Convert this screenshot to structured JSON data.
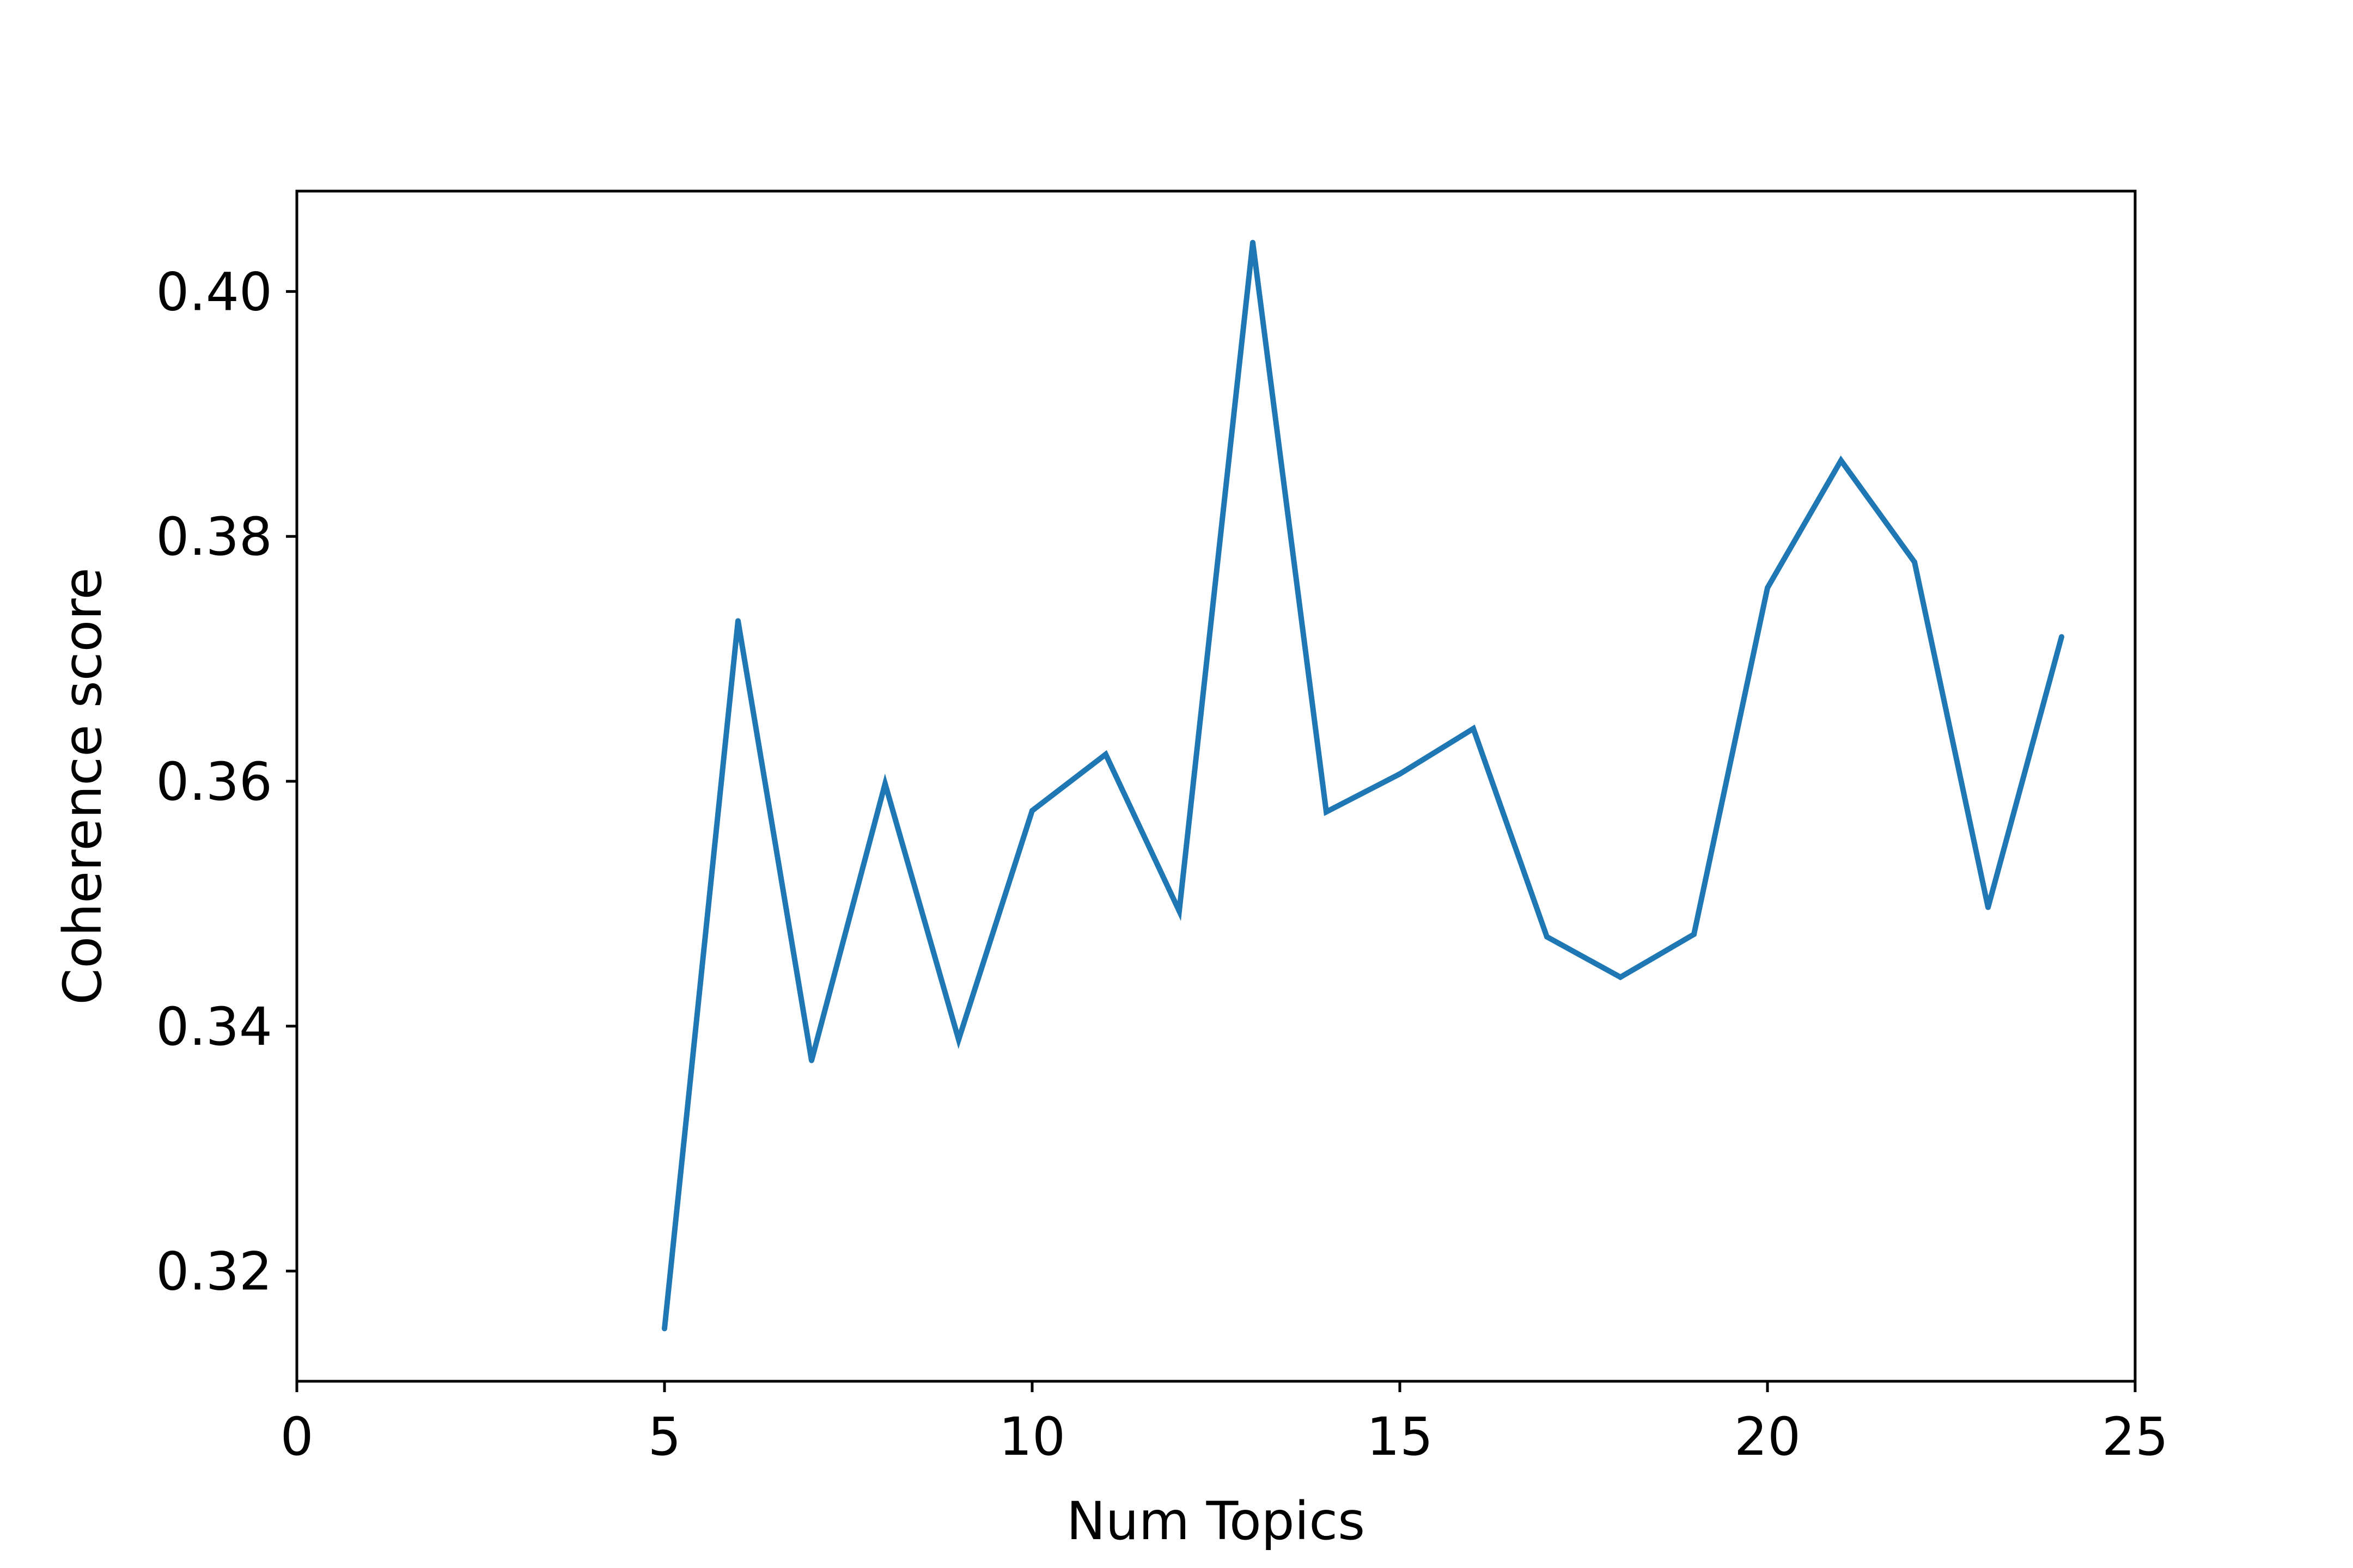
{
  "chart_data": {
    "type": "line",
    "title": "",
    "xlabel": "Num Topics",
    "ylabel": "Coherence score",
    "xlim": [
      0,
      25
    ],
    "ylim": [
      0.311,
      0.4082
    ],
    "xticks": [
      0,
      5,
      10,
      15,
      20,
      25
    ],
    "xtick_labels": [
      "0",
      "5",
      "10",
      "15",
      "20",
      "25"
    ],
    "yticks": [
      0.32,
      0.34,
      0.36,
      0.38,
      0.4
    ],
    "ytick_labels": [
      "0.32",
      "0.34",
      "0.36",
      "0.38",
      "0.40"
    ],
    "grid": false,
    "legend": "none",
    "series": [
      {
        "color": "#1f77b4",
        "x": [
          5,
          6,
          7,
          8,
          9,
          10,
          11,
          12,
          13,
          14,
          15,
          16,
          17,
          18,
          19,
          20,
          21,
          22,
          23,
          24
        ],
        "y": [
          0.3153,
          0.3731,
          0.3372,
          0.3598,
          0.3389,
          0.3576,
          0.3622,
          0.3494,
          0.404,
          0.3575,
          0.3606,
          0.3643,
          0.3473,
          0.344,
          0.3475,
          0.3758,
          0.3862,
          0.3779,
          0.3497,
          0.3718
        ]
      }
    ]
  }
}
